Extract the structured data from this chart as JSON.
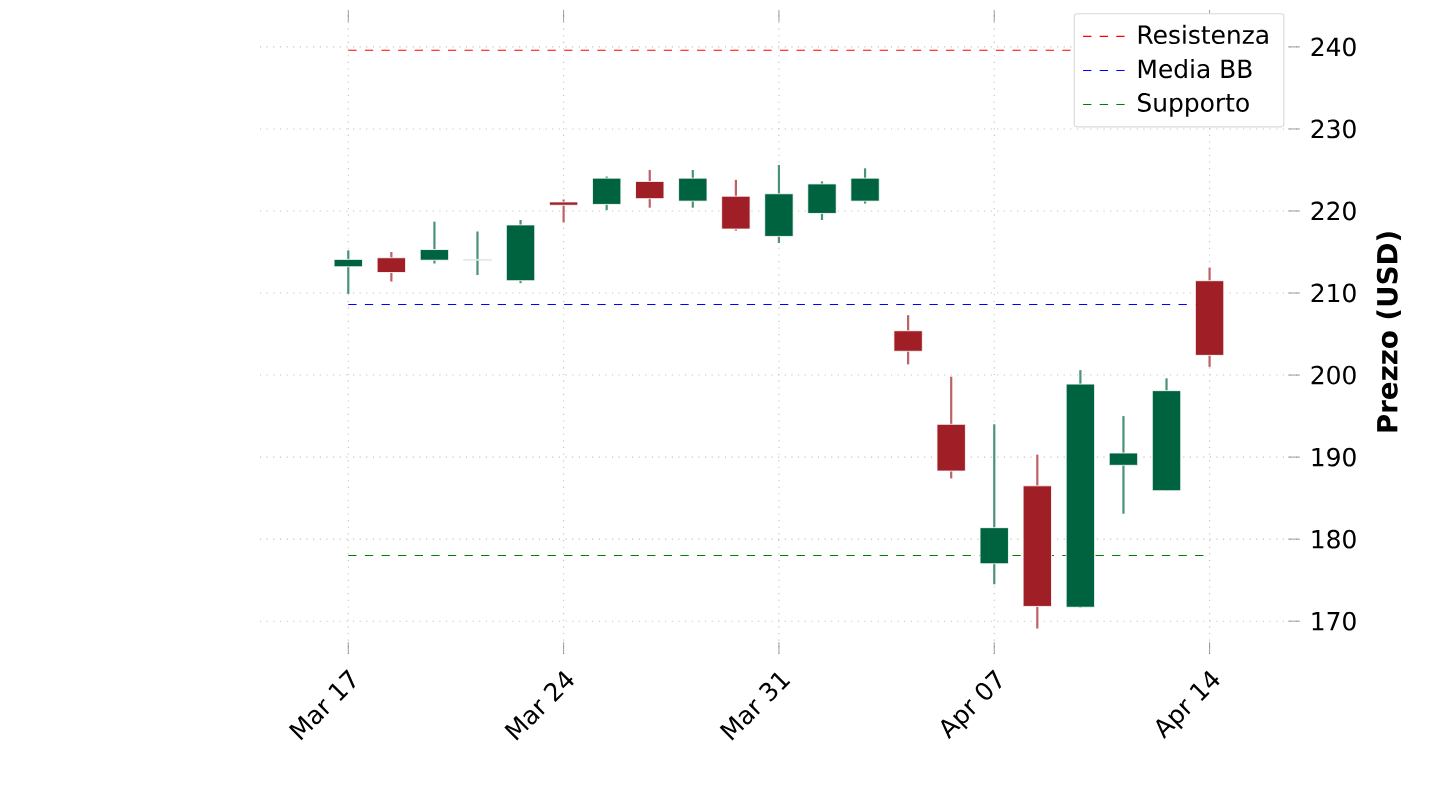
{
  "chart_data": {
    "type": "candlestick",
    "categories": [
      "Mar 17",
      null,
      null,
      null,
      null,
      "Mar 24",
      null,
      null,
      null,
      null,
      "Mar 31",
      null,
      null,
      null,
      null,
      "Apr 07",
      null,
      null,
      null,
      null,
      "Apr 14"
    ],
    "ohlc": [
      [
        213.2,
        215.2,
        209.9,
        214.1
      ],
      [
        214.3,
        215.0,
        211.4,
        212.5
      ],
      [
        214.0,
        218.7,
        213.6,
        215.3
      ],
      [
        214.0,
        217.5,
        212.2,
        214.1
      ],
      [
        211.5,
        218.9,
        211.2,
        218.3
      ],
      [
        221.1,
        221.4,
        218.6,
        220.7
      ],
      [
        220.8,
        224.2,
        220.1,
        224.0
      ],
      [
        223.6,
        225.0,
        220.4,
        221.5
      ],
      [
        221.2,
        225.0,
        220.4,
        224.0
      ],
      [
        221.8,
        223.8,
        217.6,
        217.8
      ],
      [
        216.9,
        225.6,
        216.1,
        222.1
      ],
      [
        219.7,
        223.6,
        218.9,
        223.3
      ],
      [
        221.2,
        225.2,
        220.9,
        224.0
      ],
      [
        205.4,
        207.3,
        201.3,
        202.9
      ],
      [
        194.0,
        199.8,
        187.4,
        188.3
      ],
      [
        177.0,
        194.0,
        174.5,
        181.4
      ],
      [
        186.5,
        190.3,
        169.1,
        171.8
      ],
      [
        171.7,
        200.6,
        171.6,
        198.9
      ],
      [
        189.0,
        195.0,
        183.1,
        190.5
      ],
      [
        185.9,
        199.6,
        185.9,
        198.1
      ],
      [
        211.5,
        213.1,
        201.0,
        202.4
      ]
    ],
    "colors": [
      "#006340",
      "#a01f27",
      "#006340",
      "#006340",
      "#006340",
      "#a01f27",
      "#006340",
      "#a01f27",
      "#006340",
      "#a01f27",
      "#006340",
      "#006340",
      "#006340",
      "#a01f27",
      "#a01f27",
      "#006340",
      "#a01f27",
      "#006340",
      "#006340",
      "#006340",
      "#a01f27"
    ],
    "ylim": [
      166,
      244.5
    ],
    "yticks": [
      170,
      180,
      190,
      200,
      210,
      220,
      230,
      240
    ],
    "ylabel": "Prezzo (USD)",
    "ref_lines": [
      {
        "axis": "y",
        "value": 239.6,
        "label": "Resistenza",
        "color": "#ff0000",
        "line_style": "dashed"
      },
      {
        "axis": "y",
        "value": 208.6,
        "label": "Media BB",
        "color": "#0000ff",
        "line_style": "dashed"
      },
      {
        "axis": "y",
        "value": 178.0,
        "label": "Supporto",
        "color": "#008000",
        "line_style": "dashed"
      }
    ],
    "grid": true,
    "legend": "top right"
  }
}
